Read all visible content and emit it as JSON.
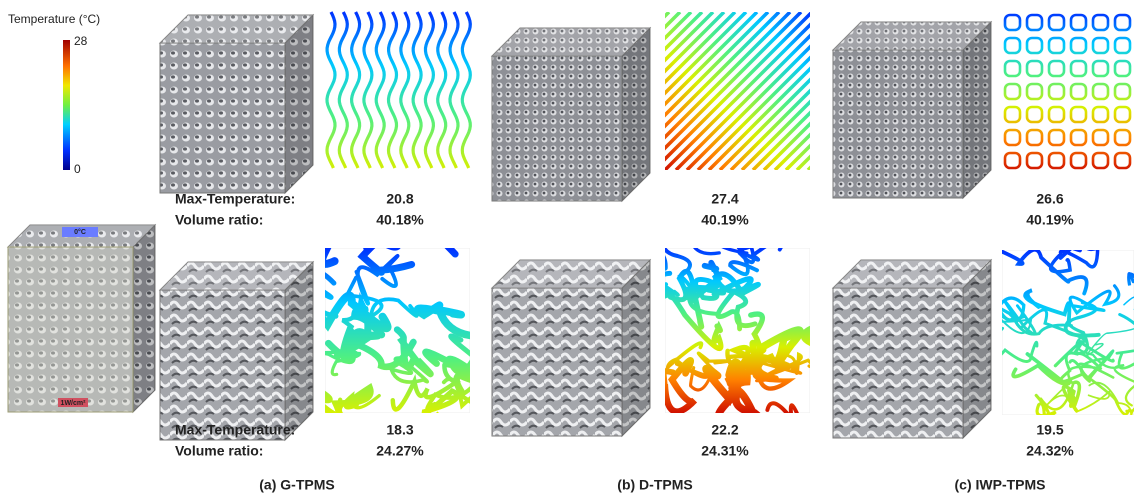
{
  "colorbar": {
    "title": "Temperature (°C)",
    "max": "28",
    "min": "0"
  },
  "boundary": {
    "top": "0°C",
    "bottom": "1W/cm²"
  },
  "row_labels": {
    "max_temperature": "Max-Temperature:",
    "volume_ratio": "Volume ratio:"
  },
  "rows": [
    {
      "panels": [
        {
          "max_temperature": "20.8",
          "volume_ratio": "40.18%"
        },
        {
          "max_temperature": "27.4",
          "volume_ratio": "40.19%"
        },
        {
          "max_temperature": "26.6",
          "volume_ratio": "40.19%"
        }
      ]
    },
    {
      "panels": [
        {
          "max_temperature": "18.3",
          "volume_ratio": "24.27%"
        },
        {
          "max_temperature": "22.2",
          "volume_ratio": "24.31%"
        },
        {
          "max_temperature": "19.5",
          "volume_ratio": "24.32%"
        }
      ]
    }
  ],
  "captions": [
    "(a) G-TPMS",
    "(b) D-TPMS",
    "(c) IWP-TPMS"
  ]
}
